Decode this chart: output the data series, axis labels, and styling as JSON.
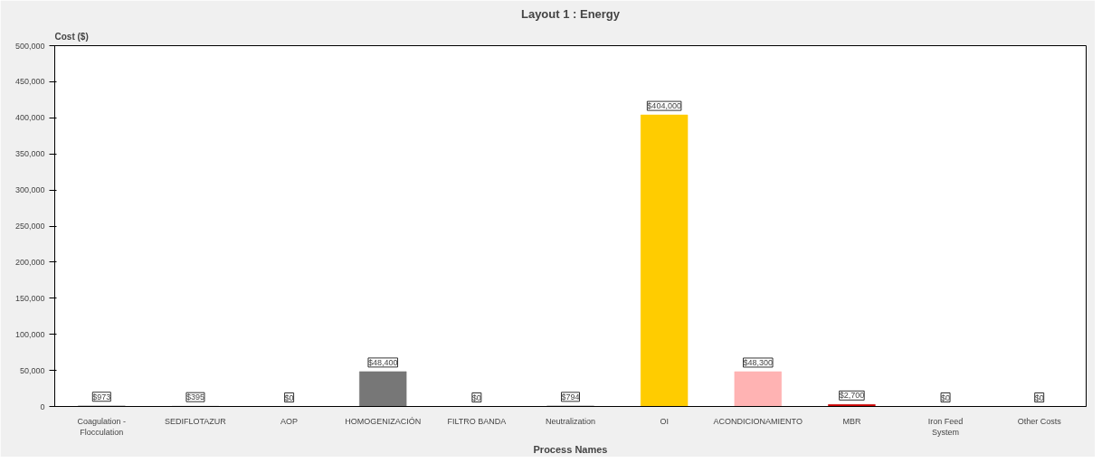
{
  "chart_data": {
    "type": "bar",
    "title": "Layout 1 : Energy",
    "xlabel": "Process Names",
    "ylabel": "Cost ($)",
    "categories": [
      "Coagulation -\nFlocculation",
      "SEDIFLOTAZUR",
      "AOP",
      "HOMOGENIZACIÓN",
      "FILTRO BANDA",
      "Neutralization",
      "OI",
      "ACONDICIONAMIENTO",
      "MBR",
      "Iron Feed\nSystem",
      "Other Costs"
    ],
    "values": [
      973,
      395,
      0,
      48400,
      0,
      794,
      404000,
      48300,
      2700,
      0,
      0
    ],
    "value_labels": [
      "$973",
      "$395",
      "$0",
      "$48,400",
      "$0",
      "$794",
      "$404,000",
      "$48,300",
      "$2,700",
      "$0",
      "$0"
    ],
    "colors": [
      "#999999",
      "#999999",
      "#999999",
      "#777777",
      "#999999",
      "#999999",
      "#ffcc00",
      "#ffb3b3",
      "#cc0000",
      "#999999",
      "#999999"
    ],
    "ylim": [
      0,
      500000
    ],
    "yticks": [
      0,
      {
        "value": 50000,
        "label": "50,000"
      },
      {
        "value": 100000,
        "label": "100,000"
      },
      {
        "value": 150000,
        "label": "150,000"
      },
      {
        "value": 200000,
        "label": "200,000"
      },
      {
        "value": 250000,
        "label": "250,000"
      },
      {
        "value": 300000,
        "label": "300,000"
      },
      {
        "value": 350000,
        "label": "350,000"
      },
      {
        "value": 400000,
        "label": "400,000"
      },
      {
        "value": 450000,
        "label": "450,000"
      },
      {
        "value": 500000,
        "label": "500,000"
      }
    ],
    "grid": false
  }
}
